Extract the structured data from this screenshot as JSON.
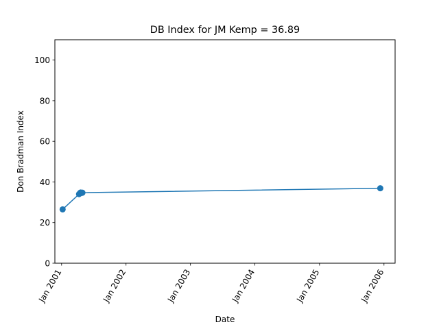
{
  "chart_data": {
    "type": "line",
    "title": "DB Index for JM Kemp = 36.89",
    "xlabel": "Date",
    "ylabel": "Don Bradman Index",
    "xlim": [
      "2000-11-24",
      "2006-03-05"
    ],
    "ylim": [
      0,
      110
    ],
    "xticks": [
      {
        "label": "Jan 2001",
        "date": "2001-01-01"
      },
      {
        "label": "Jan 2002",
        "date": "2002-01-01"
      },
      {
        "label": "Jan 2003",
        "date": "2003-01-01"
      },
      {
        "label": "Jan 2004",
        "date": "2004-01-01"
      },
      {
        "label": "Jan 2005",
        "date": "2005-01-01"
      },
      {
        "label": "Jan 2006",
        "date": "2006-01-01"
      }
    ],
    "yticks": [
      0,
      20,
      40,
      60,
      80,
      100
    ],
    "grid": false,
    "color": "#1f77b4",
    "series": [
      {
        "x": [
          "2001-01-07",
          "2001-04-10",
          "2001-04-15",
          "2001-04-19",
          "2001-04-24",
          "2001-04-29",
          "2005-12-11"
        ],
        "y": [
          26.5,
          34.0,
          34.5,
          34.8,
          34.6,
          34.7,
          36.89
        ]
      }
    ]
  }
}
